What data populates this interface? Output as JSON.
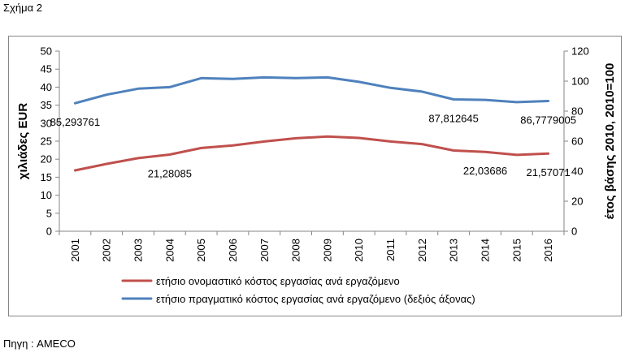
{
  "figure_label": "Σχήμα 2",
  "source": "Πηγη : AMECO",
  "colors": {
    "nominal": "#C0504D",
    "real": "#4F81BD"
  },
  "chart_data": {
    "type": "line",
    "x": [
      "2001",
      "2002",
      "2003",
      "2004",
      "2005",
      "2006",
      "2007",
      "2008",
      "2009",
      "2010",
      "2011",
      "2012",
      "2013",
      "2014",
      "2015",
      "2016"
    ],
    "ylabel": "χιλιάδες EUR",
    "ylabel_right": "έτος βάσης 2010, 2010=100",
    "ylim": [
      0,
      50
    ],
    "yticks": [
      0,
      5,
      10,
      15,
      20,
      25,
      30,
      35,
      40,
      45,
      50
    ],
    "ylim_right": [
      0,
      120
    ],
    "yticks_right": [
      0,
      20,
      40,
      60,
      80,
      100,
      120
    ],
    "grid": false,
    "legend": "bottom",
    "series": [
      {
        "name": "ετήσιο ονομαστικό κόστος εργασίας ανά εργαζόμενο",
        "axis": "left",
        "color": "#C0504D",
        "values": [
          16.9,
          18.7,
          20.3,
          21.28085,
          23.1,
          23.8,
          24.9,
          25.8,
          26.3,
          25.9,
          24.9,
          24.2,
          22.4,
          22.03686,
          21.2,
          21.57071
        ]
      },
      {
        "name": "ετήσιο πραγματικό κόστος εργασίας ανά εργαζόμενο (δεξιός άξονας)",
        "axis": "right",
        "color": "#4F81BD",
        "values": [
          85.293761,
          91.0,
          95.0,
          96.0,
          102.0,
          101.5,
          102.5,
          102.0,
          102.5,
          99.5,
          95.5,
          93.0,
          87.812645,
          87.5,
          86.0,
          86.7779005
        ]
      }
    ],
    "annotations": [
      {
        "series": 1,
        "index": 0,
        "text": "85,293761"
      },
      {
        "series": 1,
        "index": 12,
        "text": "87,812645"
      },
      {
        "series": 1,
        "index": 15,
        "text": "86,7779005"
      },
      {
        "series": 0,
        "index": 3,
        "text": "21,28085"
      },
      {
        "series": 0,
        "index": 13,
        "text": "22,03686"
      },
      {
        "series": 0,
        "index": 15,
        "text": "21,57071"
      }
    ]
  }
}
